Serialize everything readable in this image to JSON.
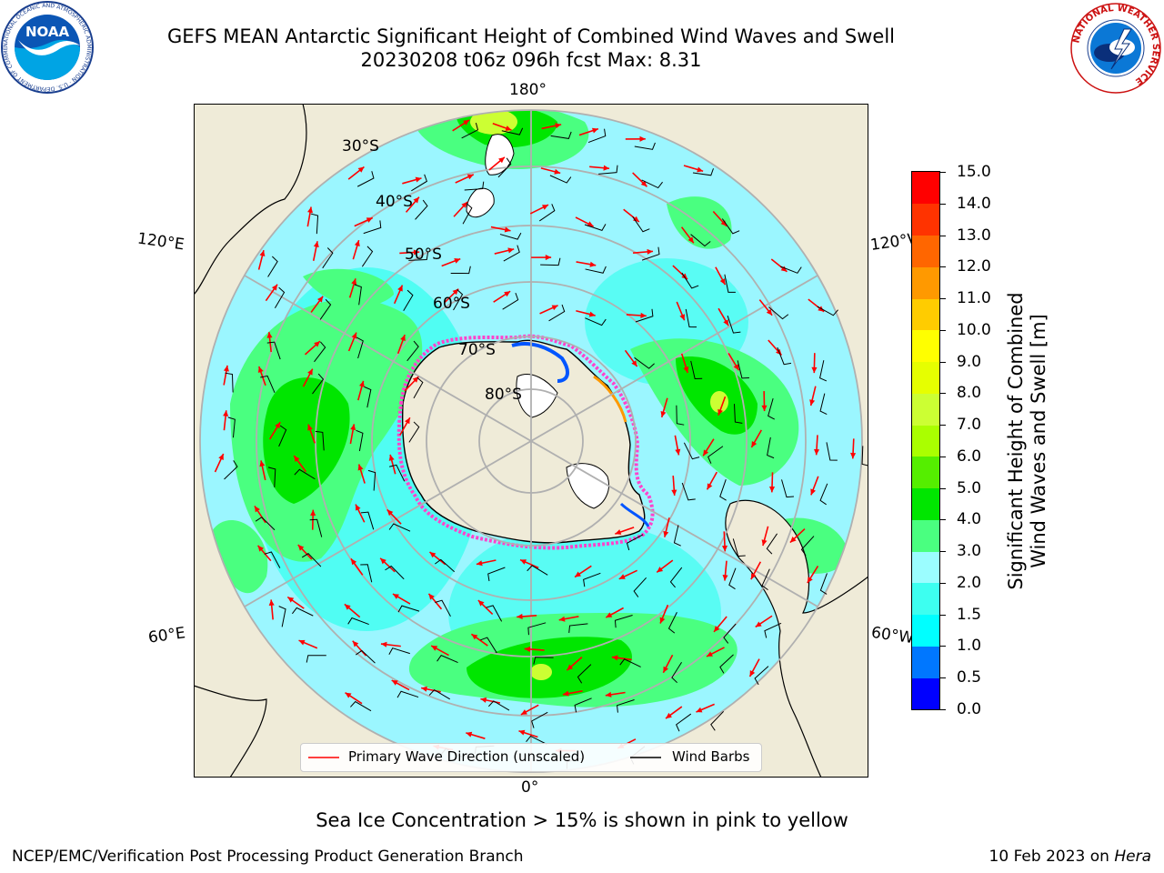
{
  "header": {
    "title_line1": "GEFS MEAN Antarctic Significant Height of Combined Wind Waves and Swell",
    "title_line2": "20230208 t06z 096h fcst   Max: 8.31"
  },
  "logos": {
    "noaa_text": "NOAA",
    "noaa_ring_text": "NATIONAL OCEANIC AND ATMOSPHERIC ADMINISTRATION · U.S. DEPARTMENT OF COMMERCE",
    "nws_ring_text": "NATIONAL WEATHER SERVICE"
  },
  "map": {
    "projection": "south-polar stereographic",
    "longitude_labels": {
      "top": "180°",
      "bottom": "0°",
      "upper_left": "120°E",
      "lower_left": "60°E",
      "upper_right": "120°W",
      "lower_right": "60°W"
    },
    "latitude_labels": [
      "30°S",
      "40°S",
      "50°S",
      "60°S",
      "70°S",
      "80°S"
    ],
    "colors": {
      "land": "#efebd8",
      "ocean_low": "#9bf6ff",
      "ocean_mid": "#3dfff0",
      "green_light": "#4aff80",
      "green": "#00e600",
      "yellow_green": "#ccff33",
      "ice_edge": "#ff44cc",
      "grid": "#b0b0b0",
      "wave_arrow": "#ff0000",
      "wind_barb": "#000000"
    }
  },
  "legend": {
    "wave_label": "Primary Wave Direction (unscaled)",
    "wind_label": "Wind Barbs"
  },
  "colorbar": {
    "label_line1": "Significant Height of Combined",
    "label_line2": "Wind Waves and Swell [m]",
    "levels": [
      "0.0",
      "0.5",
      "1.0",
      "1.5",
      "2.0",
      "3.0",
      "4.0",
      "5.0",
      "6.0",
      "7.0",
      "8.0",
      "9.0",
      "10.0",
      "11.0",
      "12.0",
      "13.0",
      "14.0",
      "15.0"
    ],
    "colors": [
      "#0000ff",
      "#0077ff",
      "#00ffff",
      "#3dfff0",
      "#9bfdff",
      "#4aff80",
      "#00e600",
      "#55ee00",
      "#aaff00",
      "#ccff33",
      "#e6ff00",
      "#ffff00",
      "#ffcc00",
      "#ff9900",
      "#ff6600",
      "#ff3300",
      "#ff0000"
    ]
  },
  "footnote": "Sea Ice Concentration > 15% is shown in pink to yellow",
  "credits": {
    "left": "NCEP/EMC/Verification Post Processing Product Generation Branch",
    "right_date": "10 Feb 2023 on ",
    "right_host": "Hera"
  }
}
